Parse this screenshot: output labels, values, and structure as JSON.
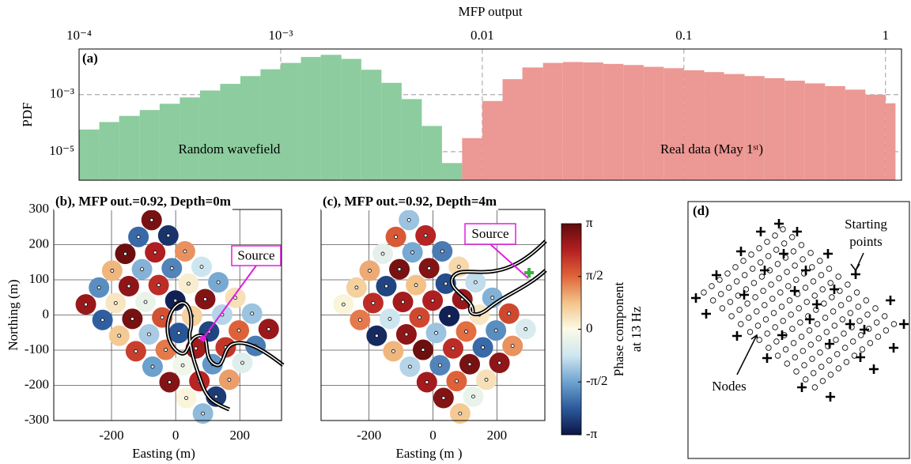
{
  "chart_data": [
    {
      "type": "histogram",
      "title": "MFP output",
      "ylabel": "PDF",
      "panel_label": "(a)",
      "xlog": true,
      "ylog": true,
      "grid": true,
      "xlim": [
        0.0001,
        1.2
      ],
      "ylim": [
        1e-06,
        0.04
      ],
      "xticks": [
        {
          "value": 0.0001,
          "label": "10⁻⁴"
        },
        {
          "value": 0.001,
          "label": "10⁻³"
        },
        0.01,
        0.1,
        1
      ],
      "yticks": [
        {
          "value": 1e-05,
          "label": "10⁻⁵"
        },
        {
          "value": 0.001,
          "label": "10⁻³"
        }
      ],
      "series": [
        {
          "name": "Random wavefield",
          "color": "#8ccc9e",
          "bins": [
            0.0001,
            0.000126,
            0.000158,
            0.0002,
            0.000251,
            0.000316,
            0.000398,
            0.000501,
            0.000631,
            0.000794,
            0.001,
            0.00126,
            0.00158,
            0.002,
            0.00251,
            0.00316,
            0.00398,
            0.00501,
            0.00631,
            0.00794
          ],
          "values": [
            6e-05,
            0.00011,
            0.00018,
            0.00029,
            0.00048,
            0.0008,
            0.0014,
            0.0024,
            0.0045,
            0.0078,
            0.013,
            0.021,
            0.025,
            0.018,
            0.0075,
            0.0026,
            0.0007,
            8e-05,
            4e-06
          ]
        },
        {
          "name": "Real data (May 1ˢᵗ)",
          "color": "#ec9894",
          "bins": [
            0.00794,
            0.01,
            0.0126,
            0.0158,
            0.02,
            0.0251,
            0.0316,
            0.0398,
            0.0501,
            0.0631,
            0.0794,
            0.1,
            0.126,
            0.158,
            0.2,
            0.251,
            0.316,
            0.398,
            0.501,
            0.631,
            0.794,
            1,
            1.12
          ],
          "values": [
            3e-05,
            0.0006,
            0.0035,
            0.009,
            0.013,
            0.014,
            0.0135,
            0.012,
            0.011,
            0.0095,
            0.0085,
            0.0072,
            0.0062,
            0.0053,
            0.0045,
            0.0038,
            0.0031,
            0.0025,
            0.002,
            0.0015,
            0.001,
            0.0005
          ]
        }
      ]
    },
    {
      "type": "scatter",
      "title": "(b), MFP out.=0.92, Depth=0m",
      "xlabel": "Easting (m)",
      "ylabel": "Northing (m)",
      "annotation": "Source",
      "grid": true,
      "show_ytick_labels": true,
      "xlim": [
        -380,
        330
      ],
      "ylim": [
        -300,
        300
      ],
      "xticks": [
        -200,
        0,
        200
      ],
      "yticks": [
        -300,
        -200,
        -100,
        0,
        100,
        200,
        300
      ],
      "clim": [
        -3.1416,
        3.1416
      ],
      "colormap": [
        "#0c1545",
        "#2b5a9c",
        "#6fa3cf",
        "#cfe6f0",
        "#fbfbe6",
        "#f3c48a",
        "#e0653a",
        "#b41f22",
        "#5e0b0b"
      ],
      "x": [
        -75,
        -23,
        29,
        81,
        133,
        186,
        238,
        290,
        -116,
        -64,
        -12,
        40,
        92,
        145,
        197,
        249,
        -157,
        -105,
        -53,
        -1,
        51,
        104,
        156,
        208,
        -198,
        -146,
        -94,
        -42,
        10,
        63,
        115,
        167,
        -239,
        -187,
        -135,
        -83,
        -31,
        22,
        74,
        126,
        -280,
        -228,
        -176,
        -124,
        -72,
        -19,
        33,
        85
      ],
      "y": [
        270,
        226,
        181,
        137,
        93,
        49,
        4,
        -40,
        222,
        178,
        133,
        89,
        45,
        1,
        -44,
        -88,
        174,
        130,
        85,
        41,
        -3,
        -47,
        -92,
        -136,
        126,
        82,
        37,
        -7,
        -51,
        -95,
        -140,
        -184,
        78,
        34,
        -11,
        -55,
        -99,
        -143,
        -188,
        -232,
        30,
        -14,
        -59,
        -103,
        -147,
        -191,
        -236,
        -280
      ],
      "values": [
        2.9,
        -2.8,
        1.2,
        -0.8,
        -1.5,
        0.4,
        -1.2,
        2.6,
        -2.2,
        2.4,
        -1.9,
        0.2,
        2.8,
        -1.0,
        1.6,
        -2.0,
        3.0,
        -1.4,
        2.2,
        -3.0,
        0.6,
        -2.6,
        2.1,
        -0.5,
        0.9,
        2.7,
        -0.3,
        1.8,
        -2.4,
        2.5,
        -1.7,
        1.1,
        -1.8,
        0.3,
        2.9,
        -1.1,
        1.4,
        -0.2,
        2.3,
        -2.7,
        2.6,
        -2.3,
        0.7,
        2.0,
        -1.6,
        2.8,
        0.1,
        -1.3
      ]
    },
    {
      "type": "scatter",
      "title": "(c), MFP out.=0.92, Depth=4m",
      "xlabel": "Easting (m )",
      "annotation": "Source",
      "grid": true,
      "show_ytick_labels": false,
      "xlim": [
        -350,
        350
      ],
      "ylim": [
        -300,
        300
      ],
      "xticks": [
        -200,
        0,
        200
      ],
      "yticks": [
        -300,
        -200,
        -100,
        0,
        100,
        200,
        300
      ],
      "clim": [
        -3.1416,
        3.1416
      ],
      "colormap": [
        "#0c1545",
        "#2b5a9c",
        "#6fa3cf",
        "#cfe6f0",
        "#fbfbe6",
        "#f3c48a",
        "#e0653a",
        "#b41f22",
        "#5e0b0b"
      ],
      "colorbar": {
        "label": [
          "Phase component",
          "at 13 Hz"
        ],
        "ticks": [
          {
            "value": 3.1416,
            "label": "π"
          },
          {
            "value": 1.5708,
            "label": "π/2"
          },
          0,
          {
            "value": -1.5708,
            "label": "-π/2"
          },
          {
            "value": -3.1416,
            "label": "-π"
          }
        ]
      },
      "x": [
        -75,
        -23,
        29,
        81,
        133,
        186,
        238,
        290,
        -116,
        -64,
        -12,
        40,
        92,
        145,
        197,
        249,
        -157,
        -105,
        -53,
        -1,
        51,
        104,
        156,
        208,
        -198,
        -146,
        -94,
        -42,
        10,
        63,
        115,
        167,
        -239,
        -187,
        -135,
        -83,
        -31,
        22,
        74,
        126,
        -280,
        -228,
        -176,
        -124,
        -72,
        -19,
        33,
        85
      ],
      "y": [
        270,
        226,
        181,
        137,
        93,
        49,
        4,
        -40,
        222,
        178,
        133,
        89,
        45,
        1,
        -44,
        -88,
        174,
        130,
        85,
        41,
        -3,
        -47,
        -92,
        -136,
        126,
        82,
        37,
        -7,
        -51,
        -95,
        -140,
        -184,
        78,
        34,
        -11,
        -55,
        -99,
        -143,
        -188,
        -232,
        30,
        -14,
        -59,
        -103,
        -147,
        -191,
        -236,
        -280
      ],
      "values": [
        -1.2,
        2.3,
        -2.0,
        0.5,
        -0.9,
        -1.4,
        1.9,
        -0.6,
        1.7,
        -1.5,
        2.8,
        -2.5,
        2.6,
        0.3,
        -1.8,
        1.2,
        -0.4,
        2.9,
        0.8,
        2.4,
        -3.0,
        1.5,
        -2.2,
        2.7,
        1.0,
        -2.6,
        2.5,
        1.9,
        -1.2,
        2.2,
        2.9,
        0.4,
        0.6,
        2.2,
        -0.8,
        2.7,
        3.0,
        -1.9,
        1.6,
        -0.3,
        0.1,
        1.4,
        -2.9,
        0.9,
        -1.0,
        2.5,
        2.8,
        0.7
      ]
    }
  ],
  "panel_d": {
    "label": "(d)",
    "starting_points": [
      "Starting",
      "points"
    ],
    "nodes_label": "Nodes"
  }
}
